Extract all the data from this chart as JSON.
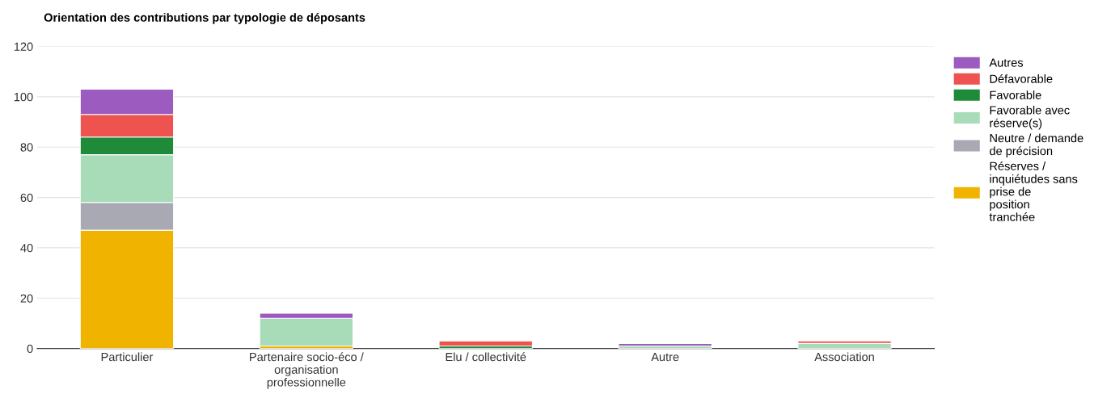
{
  "chart_data": {
    "type": "bar",
    "stacked": true,
    "title": "Orientation des contributions par typologie de déposants",
    "categories": [
      "Particulier",
      "Partenaire socio-éco / organisation professionnelle",
      "Elu / collectivité",
      "Autre",
      "Association"
    ],
    "series": [
      {
        "name": "Réserves / inquiétudes sans prise de position tranchée",
        "color": "#f0b400",
        "values": [
          47,
          1,
          0,
          0,
          0
        ]
      },
      {
        "name": "Neutre / demande de précision",
        "color": "#a9a9b4",
        "values": [
          11,
          0,
          0,
          0,
          0
        ]
      },
      {
        "name": "Favorable avec réserve(s)",
        "color": "#a8dcb8",
        "values": [
          19,
          11,
          0,
          1,
          2
        ]
      },
      {
        "name": "Favorable",
        "color": "#1f8a3a",
        "values": [
          7,
          0,
          1,
          0,
          0
        ]
      },
      {
        "name": "Défavorable",
        "color": "#ef5350",
        "values": [
          9,
          0,
          2,
          0,
          1
        ]
      },
      {
        "name": "Autres",
        "color": "#9c5bbf",
        "values": [
          10,
          2,
          0,
          1,
          0
        ]
      }
    ],
    "ylim": [
      0,
      120
    ],
    "yticks": [
      0,
      20,
      40,
      60,
      80,
      100,
      120
    ],
    "grid": "y",
    "legend": "right"
  }
}
